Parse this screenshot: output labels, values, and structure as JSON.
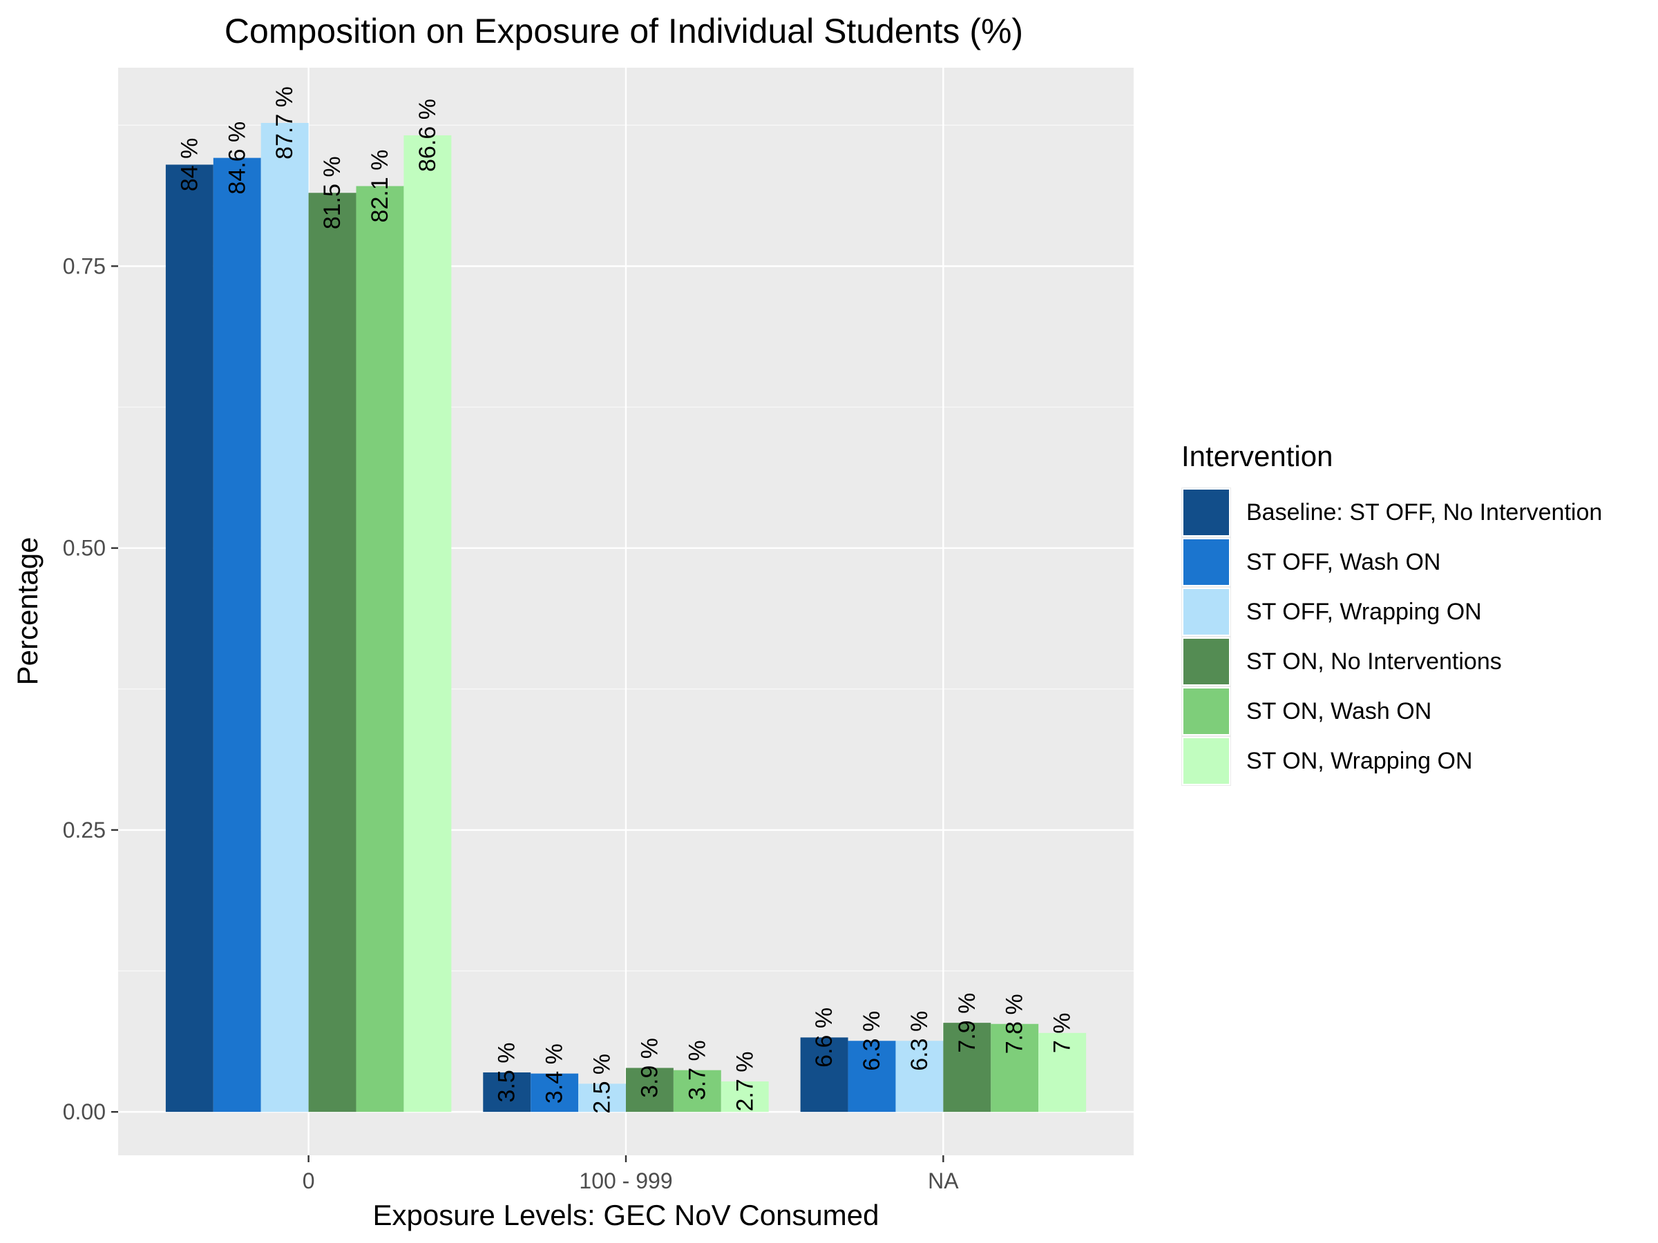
{
  "chart_data": {
    "type": "bar",
    "title": "Composition on Exposure of Individual Students (%)",
    "xlabel": "Exposure Levels: GEC NoV Consumed",
    "ylabel": "Percentage",
    "categories": [
      "0",
      "100 - 999",
      "NA"
    ],
    "ylim": [
      -0.0385,
      0.926
    ],
    "yticks": [
      {
        "value": 0,
        "label": "0.00"
      },
      {
        "value": 0.25,
        "label": "0.25"
      },
      {
        "value": 0.5,
        "label": "0.50"
      },
      {
        "value": 0.75,
        "label": "0.75"
      }
    ],
    "grid": true,
    "legend_title": "Intervention",
    "legend_position": "right",
    "series": [
      {
        "name": "Baseline: ST OFF, No Intervention",
        "color": "#124e8a",
        "values": [
          0.84,
          0.035,
          0.066
        ],
        "labels": [
          "84 %",
          "3.5 %",
          "6.6 %"
        ]
      },
      {
        "name": "ST OFF, Wash ON",
        "color": "#1b75cf",
        "values": [
          0.846,
          0.034,
          0.063
        ],
        "labels": [
          "84.6 %",
          "3.4 %",
          "6.3 %"
        ]
      },
      {
        "name": "ST OFF, Wrapping ON",
        "color": "#b2e0fa",
        "values": [
          0.877,
          0.025,
          0.063
        ],
        "labels": [
          "87.7 %",
          "2.5 %",
          "6.3 %"
        ]
      },
      {
        "name": "ST ON, No Interventions",
        "color": "#548c53",
        "values": [
          0.815,
          0.039,
          0.079
        ],
        "labels": [
          "81.5 %",
          "3.9 %",
          "7.9 %"
        ]
      },
      {
        "name": "ST ON, Wash ON",
        "color": "#7ece7a",
        "values": [
          0.821,
          0.037,
          0.078
        ],
        "labels": [
          "82.1 %",
          "3.7 %",
          "7.8 %"
        ]
      },
      {
        "name": "ST ON, Wrapping ON",
        "color": "#c1fdbf",
        "values": [
          0.866,
          0.027,
          0.07
        ],
        "labels": [
          "86.6 %",
          "2.7 %",
          "7 %"
        ]
      }
    ]
  },
  "colors": {
    "panel_background": "#ebebeb",
    "grid_major": "#ffffff",
    "grid_minor": "#f5f5f5",
    "tick_text": "#4d4d4d"
  }
}
